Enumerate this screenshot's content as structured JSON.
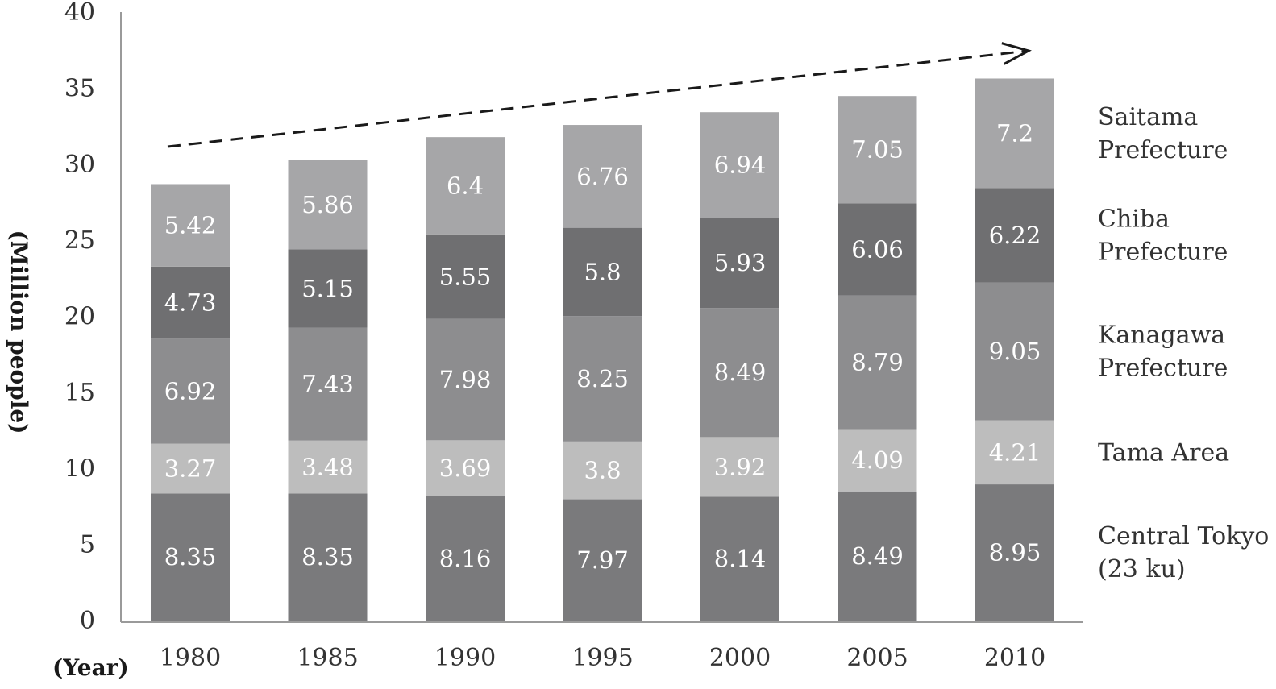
{
  "chart_data": {
    "type": "bar",
    "stacked": true,
    "categories": [
      "1980",
      "1985",
      "1990",
      "1995",
      "2000",
      "2005",
      "2010"
    ],
    "series": [
      {
        "name": "Central Tokyo (23 ku)",
        "legend_lines": [
          "Central Tokyo",
          "(23 ku)"
        ],
        "color": "#7a7a7c",
        "values": [
          8.35,
          8.35,
          8.16,
          7.97,
          8.14,
          8.49,
          8.95
        ]
      },
      {
        "name": "Tama Area",
        "legend_lines": [
          "Tama Area"
        ],
        "color": "#bdbdbd",
        "values": [
          3.27,
          3.48,
          3.69,
          3.8,
          3.92,
          4.09,
          4.21
        ]
      },
      {
        "name": "Kanagawa Prefecture",
        "legend_lines": [
          "Kanagawa",
          "Prefecture"
        ],
        "color": "#8d8d8f",
        "values": [
          6.92,
          7.43,
          7.98,
          8.25,
          8.49,
          8.79,
          9.05
        ]
      },
      {
        "name": "Chiba Prefecture",
        "legend_lines": [
          "Chiba",
          "Prefecture"
        ],
        "color": "#6f6f71",
        "values": [
          4.73,
          5.15,
          5.55,
          5.8,
          5.93,
          6.06,
          6.22
        ]
      },
      {
        "name": "Saitama Prefecture",
        "legend_lines": [
          "Saitama",
          "Prefecture"
        ],
        "color": "#a6a6a8",
        "values": [
          5.42,
          5.86,
          6.4,
          6.76,
          6.94,
          7.05,
          7.2
        ]
      }
    ],
    "ylabel": "(Million people)",
    "xlabel": "(Year)",
    "ylim": [
      0,
      40
    ],
    "yticks": [
      0,
      5,
      10,
      15,
      20,
      25,
      30,
      35,
      40
    ],
    "annotation": "dashed trend arrow",
    "legend_position": "right",
    "grid": false
  }
}
